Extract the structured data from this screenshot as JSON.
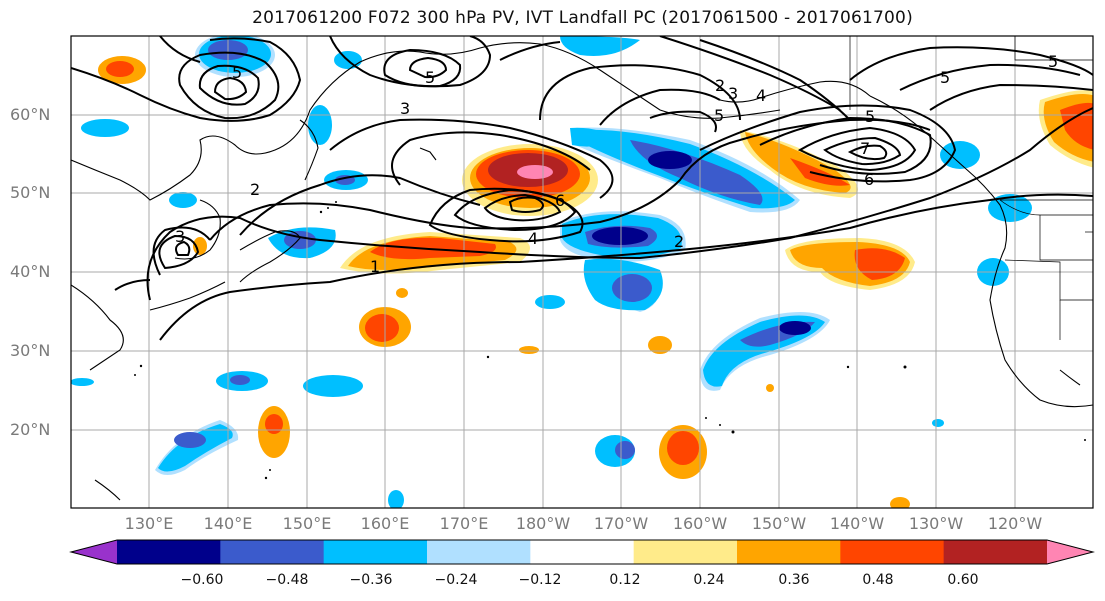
{
  "title": "2017061200 F072 300 hPa PV, IVT Landfall PC (2017061500 - 2017061700)",
  "map": {
    "lat_labels": [
      "60°N",
      "50°N",
      "40°N",
      "30°N",
      "20°N"
    ],
    "lon_labels": [
      "130°E",
      "140°E",
      "150°E",
      "160°E",
      "170°E",
      "180°W",
      "170°W",
      "160°W",
      "150°W",
      "140°W",
      "130°W",
      "120°W"
    ],
    "contour_labels": [
      "5",
      "5",
      "2",
      "2",
      "3",
      "4",
      "5",
      "5",
      "7",
      "6",
      "5",
      "5",
      "6",
      "4",
      "2",
      "1",
      "3",
      "3"
    ]
  },
  "colorbar": {
    "tick_labels": [
      "−0.60",
      "−0.48",
      "−0.36",
      "−0.24",
      "−0.12",
      "0.12",
      "0.24",
      "0.36",
      "0.48",
      "0.60"
    ],
    "colors": [
      "#9932CC",
      "#00008B",
      "#3B5BCC",
      "#00BFFF",
      "#B0E0FF",
      "#FFFFFF",
      "#FFEB8A",
      "#FFA500",
      "#FF4500",
      "#B22222",
      "#FF85B3"
    ]
  }
}
